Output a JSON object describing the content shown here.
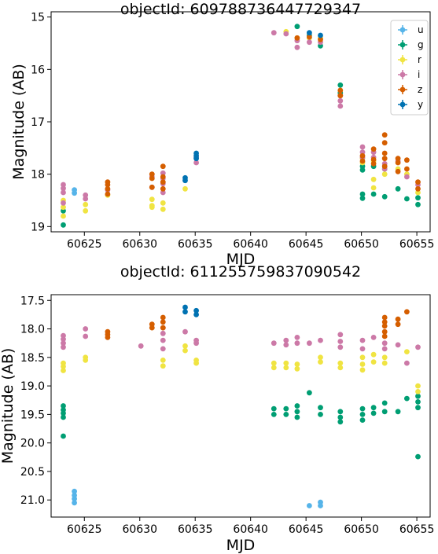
{
  "colors": {
    "u": "#56b4e9",
    "g": "#009e73",
    "r": "#f0e442",
    "i": "#cc79a7",
    "z": "#d55e00",
    "y": "#0072b2"
  },
  "chart_data": [
    {
      "type": "scatter",
      "title": "objectId: 609788736447729347",
      "xlabel": "MJD",
      "ylabel": "Magnitude (AB)",
      "xlim": [
        60622.0,
        60656.2
      ],
      "ylim": [
        19.1,
        14.9
      ],
      "y_inverted": true,
      "xticks": [
        60625,
        60630,
        60635,
        60640,
        60645,
        60650,
        60655
      ],
      "yticks": [
        15,
        16,
        17,
        18,
        19
      ],
      "grid": false,
      "legend": {
        "placement": "top-right",
        "entries": [
          "u",
          "g",
          "r",
          "i",
          "z",
          "y"
        ]
      },
      "series": [
        {
          "name": "u",
          "points": [
            [
              60624.1,
              18.3
            ],
            [
              60624.1,
              18.36
            ]
          ]
        },
        {
          "name": "g",
          "points": [
            [
              60623.1,
              18.97
            ],
            [
              60623.1,
              18.7
            ],
            [
              60644.2,
              15.18
            ],
            [
              60645.3,
              15.35
            ],
            [
              60646.3,
              15.55
            ],
            [
              60648.1,
              16.3
            ],
            [
              60648.1,
              16.45
            ],
            [
              60650.1,
              17.85
            ],
            [
              60650.1,
              17.92
            ],
            [
              60650.1,
              18.38
            ],
            [
              60650.1,
              18.46
            ],
            [
              60651.1,
              17.85
            ],
            [
              60651.1,
              18.38
            ],
            [
              60652.1,
              17.9
            ],
            [
              60652.1,
              18.43
            ],
            [
              60653.3,
              18.28
            ],
            [
              60654.1,
              18.47
            ],
            [
              60655.1,
              18.45
            ],
            [
              60655.1,
              18.58
            ]
          ]
        },
        {
          "name": "r",
          "points": [
            [
              60623.1,
              18.5
            ],
            [
              60623.1,
              18.63
            ],
            [
              60623.1,
              18.8
            ],
            [
              60625.1,
              18.58
            ],
            [
              60625.1,
              18.7
            ],
            [
              60627.1,
              18.4
            ],
            [
              60631.1,
              18.48
            ],
            [
              60631.1,
              18.6
            ],
            [
              60631.1,
              18.63
            ],
            [
              60632.1,
              18.55
            ],
            [
              60632.1,
              18.67
            ],
            [
              60634.1,
              18.28
            ],
            [
              60643.2,
              15.28
            ],
            [
              60644.2,
              15.4
            ],
            [
              60645.3,
              15.4
            ],
            [
              60646.3,
              15.4
            ],
            [
              60648.1,
              16.4
            ],
            [
              60648.1,
              16.5
            ],
            [
              60650.1,
              17.7
            ],
            [
              60650.1,
              17.78
            ],
            [
              60651.1,
              17.75
            ],
            [
              60651.1,
              18.1
            ],
            [
              60651.1,
              18.26
            ],
            [
              60652.1,
              18.0
            ],
            [
              60653.3,
              17.9
            ],
            [
              60654.1,
              18.0
            ],
            [
              60655.1,
              18.35
            ]
          ]
        },
        {
          "name": "i",
          "points": [
            [
              60623.1,
              18.2
            ],
            [
              60623.1,
              18.27
            ],
            [
              60623.1,
              18.35
            ],
            [
              60623.1,
              18.55
            ],
            [
              60625.1,
              18.4
            ],
            [
              60625.1,
              18.47
            ],
            [
              60627.1,
              18.3
            ],
            [
              60631.1,
              18.05
            ],
            [
              60631.1,
              18.25
            ],
            [
              60632.1,
              17.98
            ],
            [
              60632.1,
              18.08
            ],
            [
              60632.1,
              18.18
            ],
            [
              60632.1,
              18.35
            ],
            [
              60635.1,
              17.68
            ],
            [
              60635.1,
              17.78
            ],
            [
              60642.1,
              15.3
            ],
            [
              60643.2,
              15.32
            ],
            [
              60644.2,
              15.45
            ],
            [
              60644.2,
              15.58
            ],
            [
              60645.3,
              15.48
            ],
            [
              60646.3,
              15.48
            ],
            [
              60648.1,
              16.5
            ],
            [
              60648.1,
              16.6
            ],
            [
              60648.1,
              16.7
            ],
            [
              60650.1,
              17.48
            ],
            [
              60650.1,
              17.58
            ],
            [
              60650.1,
              17.68
            ],
            [
              60651.1,
              17.58
            ],
            [
              60651.1,
              17.68
            ],
            [
              60652.1,
              17.8
            ],
            [
              60652.1,
              17.9
            ],
            [
              60653.3,
              17.75
            ],
            [
              60654.1,
              18.05
            ],
            [
              60655.1,
              18.2
            ]
          ]
        },
        {
          "name": "z",
          "points": [
            [
              60627.1,
              18.15
            ],
            [
              60627.1,
              18.2
            ],
            [
              60627.1,
              18.28
            ],
            [
              60627.1,
              18.38
            ],
            [
              60631.1,
              18.0
            ],
            [
              60631.1,
              18.08
            ],
            [
              60631.1,
              18.25
            ],
            [
              60632.1,
              17.85
            ],
            [
              60632.1,
              18.05
            ],
            [
              60632.1,
              18.15
            ],
            [
              60632.1,
              18.28
            ],
            [
              60644.2,
              15.4
            ],
            [
              60645.3,
              15.38
            ],
            [
              60646.3,
              15.43
            ],
            [
              60648.1,
              16.4
            ],
            [
              60648.1,
              16.5
            ],
            [
              60650.1,
              17.65
            ],
            [
              60650.1,
              17.75
            ],
            [
              60651.1,
              17.52
            ],
            [
              60651.1,
              17.72
            ],
            [
              60651.1,
              17.8
            ],
            [
              60652.1,
              17.25
            ],
            [
              60652.1,
              17.4
            ],
            [
              60652.1,
              17.6
            ],
            [
              60652.1,
              17.7
            ],
            [
              60652.1,
              17.85
            ],
            [
              60653.3,
              17.7
            ],
            [
              60653.3,
              17.78
            ],
            [
              60653.3,
              17.95
            ],
            [
              60654.1,
              17.73
            ],
            [
              60654.1,
              17.9
            ],
            [
              60655.1,
              18.15
            ],
            [
              60655.1,
              18.28
            ]
          ]
        },
        {
          "name": "y",
          "points": [
            [
              60634.1,
              18.07
            ],
            [
              60634.1,
              18.12
            ],
            [
              60635.1,
              17.6
            ],
            [
              60635.1,
              17.65
            ],
            [
              60635.1,
              17.7
            ],
            [
              60645.3,
              15.3
            ],
            [
              60646.3,
              15.35
            ]
          ]
        }
      ]
    },
    {
      "type": "scatter",
      "title": "objectId: 611255759837090542",
      "xlabel": "MJD",
      "ylabel": "Magnitude (AB)",
      "xlim": [
        60622.0,
        60656.2
      ],
      "ylim": [
        21.3,
        17.4
      ],
      "y_inverted": true,
      "xticks": [
        60625,
        60630,
        60635,
        60640,
        60645,
        60650,
        60655
      ],
      "yticks": [
        17.5,
        18.0,
        18.5,
        19.0,
        19.5,
        20.0,
        20.5,
        21.0
      ],
      "grid": false,
      "series": [
        {
          "name": "u",
          "points": [
            [
              60624.1,
              20.85
            ],
            [
              60624.1,
              20.92
            ],
            [
              60624.1,
              20.98
            ],
            [
              60624.1,
              21.05
            ],
            [
              60645.3,
              21.1
            ],
            [
              60646.3,
              21.04
            ],
            [
              60646.3,
              21.1
            ]
          ]
        },
        {
          "name": "g",
          "points": [
            [
              60623.1,
              19.35
            ],
            [
              60623.1,
              19.42
            ],
            [
              60623.1,
              19.48
            ],
            [
              60623.1,
              19.55
            ],
            [
              60623.1,
              19.88
            ],
            [
              60642.1,
              19.4
            ],
            [
              60642.1,
              19.5
            ],
            [
              60643.2,
              19.4
            ],
            [
              60643.2,
              19.5
            ],
            [
              60644.2,
              19.35
            ],
            [
              60644.2,
              19.45
            ],
            [
              60644.2,
              19.55
            ],
            [
              60645.3,
              19.12
            ],
            [
              60646.3,
              19.38
            ],
            [
              60646.3,
              19.5
            ],
            [
              60648.1,
              19.45
            ],
            [
              60648.1,
              19.55
            ],
            [
              60648.1,
              19.63
            ],
            [
              60650.1,
              19.4
            ],
            [
              60650.1,
              19.5
            ],
            [
              60650.1,
              19.6
            ],
            [
              60651.1,
              19.38
            ],
            [
              60651.1,
              19.48
            ],
            [
              60652.1,
              19.3
            ],
            [
              60652.1,
              19.45
            ],
            [
              60653.3,
              19.45
            ],
            [
              60654.1,
              19.22
            ],
            [
              60655.1,
              19.18
            ],
            [
              60655.1,
              19.28
            ],
            [
              60655.1,
              19.38
            ],
            [
              60655.1,
              20.24
            ]
          ]
        },
        {
          "name": "r",
          "points": [
            [
              60623.1,
              18.6
            ],
            [
              60623.1,
              18.66
            ],
            [
              60623.1,
              18.73
            ],
            [
              60625.1,
              18.5
            ],
            [
              60625.1,
              18.55
            ],
            [
              60632.1,
              18.55
            ],
            [
              60632.1,
              18.65
            ],
            [
              60634.1,
              18.3
            ],
            [
              60634.1,
              18.38
            ],
            [
              60635.1,
              18.55
            ],
            [
              60635.1,
              18.6
            ],
            [
              60642.1,
              18.6
            ],
            [
              60642.1,
              18.68
            ],
            [
              60643.2,
              18.6
            ],
            [
              60643.2,
              18.68
            ],
            [
              60644.2,
              18.62
            ],
            [
              60644.2,
              18.7
            ],
            [
              60646.3,
              18.5
            ],
            [
              60646.3,
              18.58
            ],
            [
              60648.1,
              18.6
            ],
            [
              60648.1,
              18.68
            ],
            [
              60650.1,
              18.5
            ],
            [
              60650.1,
              18.62
            ],
            [
              60650.1,
              18.72
            ],
            [
              60651.1,
              18.45
            ],
            [
              60651.1,
              18.58
            ],
            [
              60652.1,
              18.5
            ],
            [
              60652.1,
              18.6
            ],
            [
              60654.1,
              18.4
            ],
            [
              60655.1,
              19.0
            ],
            [
              60655.1,
              19.1
            ]
          ]
        },
        {
          "name": "i",
          "points": [
            [
              60623.1,
              18.12
            ],
            [
              60623.1,
              18.18
            ],
            [
              60623.1,
              18.25
            ],
            [
              60623.1,
              18.32
            ],
            [
              60625.1,
              18.0
            ],
            [
              60625.1,
              18.13
            ],
            [
              60630.1,
              18.3
            ],
            [
              60632.1,
              17.98
            ],
            [
              60632.1,
              18.08
            ],
            [
              60632.1,
              18.2
            ],
            [
              60632.1,
              18.35
            ],
            [
              60634.1,
              18.05
            ],
            [
              60635.1,
              18.2
            ],
            [
              60635.1,
              18.25
            ],
            [
              60642.1,
              18.25
            ],
            [
              60643.2,
              18.2
            ],
            [
              60643.2,
              18.28
            ],
            [
              60644.2,
              18.15
            ],
            [
              60644.2,
              18.25
            ],
            [
              60645.3,
              18.25
            ],
            [
              60646.3,
              18.2
            ],
            [
              60648.1,
              18.1
            ],
            [
              60648.1,
              18.22
            ],
            [
              60648.1,
              18.32
            ],
            [
              60650.1,
              18.2
            ],
            [
              60650.1,
              18.35
            ],
            [
              60651.1,
              18.15
            ],
            [
              60652.1,
              18.25
            ],
            [
              60652.1,
              18.35
            ],
            [
              60653.3,
              18.28
            ],
            [
              60654.1,
              18.6
            ],
            [
              60655.1,
              18.32
            ]
          ]
        },
        {
          "name": "z",
          "points": [
            [
              60627.1,
              18.05
            ],
            [
              60627.1,
              18.1
            ],
            [
              60627.1,
              18.15
            ],
            [
              60631.1,
              17.92
            ],
            [
              60631.1,
              17.98
            ],
            [
              60632.1,
              17.8
            ],
            [
              60632.1,
              17.88
            ],
            [
              60632.1,
              17.98
            ],
            [
              60652.1,
              17.8
            ],
            [
              60652.1,
              17.88
            ],
            [
              60652.1,
              17.95
            ],
            [
              60652.1,
              18.05
            ],
            [
              60652.1,
              18.13
            ],
            [
              60653.3,
              17.83
            ],
            [
              60653.3,
              17.92
            ],
            [
              60654.1,
              17.7
            ]
          ]
        },
        {
          "name": "y",
          "points": [
            [
              60634.1,
              17.62
            ],
            [
              60634.1,
              17.7
            ],
            [
              60635.1,
              17.68
            ],
            [
              60635.1,
              17.75
            ]
          ]
        }
      ]
    }
  ]
}
